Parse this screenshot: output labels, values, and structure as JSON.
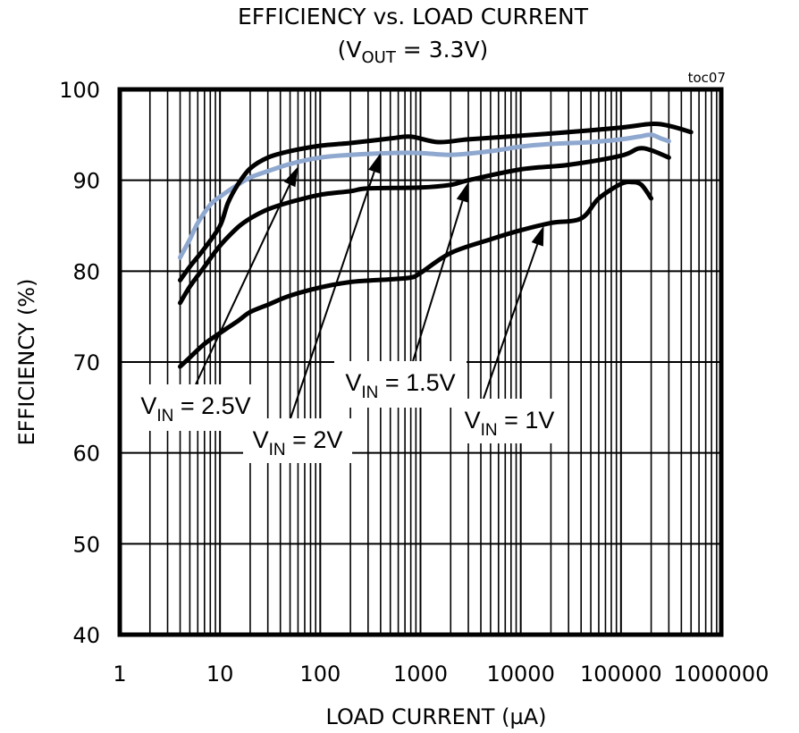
{
  "chart_data": {
    "type": "line",
    "title": "EFFICIENCY vs. LOAD CURRENT",
    "subtitle": {
      "prefix": "(V",
      "sub": "OUT",
      "suffix": " = 3.3V)"
    },
    "tag": "toc07",
    "xlabel": "LOAD CURRENT (µA)",
    "ylabel": "EFFICIENCY (%)",
    "x_scale": "log",
    "xlim": [
      1,
      1000000
    ],
    "ylim": [
      40,
      100
    ],
    "x_ticks": [
      "1",
      "10",
      "100",
      "1000",
      "10000",
      "100000",
      "1000000"
    ],
    "y_ticks": [
      "40",
      "50",
      "60",
      "70",
      "80",
      "90",
      "100"
    ],
    "grid": true,
    "series": [
      {
        "name": "V_IN = 2.5V",
        "color": "#8FA8CF",
        "points": [
          [
            4,
            81.5
          ],
          [
            5,
            83.5
          ],
          [
            6,
            85.3
          ],
          [
            8,
            87.3
          ],
          [
            10,
            88.2
          ],
          [
            15,
            89.5
          ],
          [
            20,
            90.3
          ],
          [
            30,
            91
          ],
          [
            50,
            91.8
          ],
          [
            100,
            92.5
          ],
          [
            200,
            92.8
          ],
          [
            500,
            93
          ],
          [
            1000,
            93
          ],
          [
            2000,
            92.8
          ],
          [
            5000,
            93.2
          ],
          [
            10000,
            93.7
          ],
          [
            20000,
            94
          ],
          [
            50000,
            94.2
          ],
          [
            100000,
            94.5
          ],
          [
            150000,
            94.8
          ],
          [
            200000,
            95
          ],
          [
            250000,
            94.6
          ],
          [
            300000,
            94.3
          ]
        ]
      },
      {
        "name": "V_IN = 2V",
        "color": "#000000",
        "points": [
          [
            4,
            79
          ],
          [
            5,
            80.5
          ],
          [
            7,
            82.5
          ],
          [
            10,
            85
          ],
          [
            12,
            87.5
          ],
          [
            15,
            89.5
          ],
          [
            20,
            91.3
          ],
          [
            30,
            92.5
          ],
          [
            50,
            93.2
          ],
          [
            100,
            93.8
          ],
          [
            200,
            94.1
          ],
          [
            500,
            94.6
          ],
          [
            800,
            94.8
          ],
          [
            1500,
            94.2
          ],
          [
            3000,
            94.5
          ],
          [
            10000,
            94.9
          ],
          [
            30000,
            95.3
          ],
          [
            100000,
            95.8
          ],
          [
            200000,
            96.2
          ],
          [
            300000,
            96
          ],
          [
            500000,
            95.3
          ]
        ]
      },
      {
        "name": "V_IN = 1.5V",
        "color": "#000000",
        "points": [
          [
            4,
            76.5
          ],
          [
            5,
            78.3
          ],
          [
            7,
            80.5
          ],
          [
            10,
            82.8
          ],
          [
            15,
            84.8
          ],
          [
            20,
            85.8
          ],
          [
            30,
            86.8
          ],
          [
            50,
            87.6
          ],
          [
            100,
            88.4
          ],
          [
            200,
            88.8
          ],
          [
            300,
            89.1
          ],
          [
            1000,
            89.2
          ],
          [
            2000,
            89.5
          ],
          [
            3000,
            90
          ],
          [
            10000,
            91.2
          ],
          [
            30000,
            91.7
          ],
          [
            100000,
            92.7
          ],
          [
            150000,
            93.5
          ],
          [
            200000,
            93.3
          ],
          [
            300000,
            92.5
          ]
        ]
      },
      {
        "name": "V_IN = 1V",
        "color": "#000000",
        "points": [
          [
            4,
            69.5
          ],
          [
            5,
            70.5
          ],
          [
            7,
            72
          ],
          [
            10,
            73.2
          ],
          [
            15,
            74.5
          ],
          [
            20,
            75.5
          ],
          [
            30,
            76.3
          ],
          [
            50,
            77.3
          ],
          [
            100,
            78.2
          ],
          [
            200,
            78.8
          ],
          [
            500,
            79.1
          ],
          [
            800,
            79.3
          ],
          [
            1000,
            79.8
          ],
          [
            2000,
            82
          ],
          [
            5000,
            83.5
          ],
          [
            10000,
            84.5
          ],
          [
            20000,
            85.3
          ],
          [
            40000,
            85.8
          ],
          [
            60000,
            88
          ],
          [
            100000,
            89.6
          ],
          [
            130000,
            89.8
          ],
          [
            160000,
            89.5
          ],
          [
            200000,
            88
          ]
        ]
      }
    ],
    "annotations": [
      {
        "id": "vin25",
        "prefix": "V",
        "sub": "IN",
        "value": " = 2.5V",
        "arrow_to": [
          60,
          91.5
        ]
      },
      {
        "id": "vin2",
        "prefix": "V",
        "sub": "IN",
        "value": " = 2V",
        "arrow_to": [
          400,
          93
        ]
      },
      {
        "id": "vin15",
        "prefix": "V",
        "sub": "IN",
        "value": " = 1.5V",
        "arrow_to": [
          3000,
          89.8
        ]
      },
      {
        "id": "vin1",
        "prefix": "V",
        "sub": "IN",
        "value": " = 1V",
        "arrow_to": [
          17000,
          85
        ]
      }
    ]
  }
}
